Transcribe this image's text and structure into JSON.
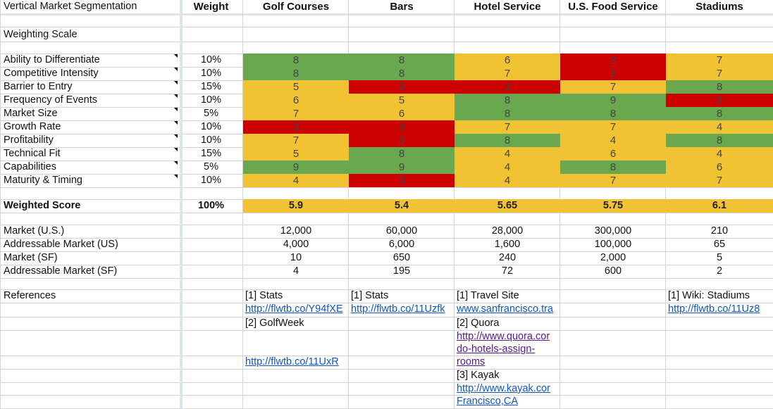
{
  "header": {
    "title": "Vertical Market Segmentation",
    "weight": "Weight",
    "segments": [
      "Golf Courses",
      "Bars",
      "Hotel Service",
      "U.S. Food Service",
      "Stadiums"
    ]
  },
  "weighting_scale_label": "Weighting Scale",
  "criteria": [
    {
      "label": "Ability to Differentiate",
      "weight": "10%",
      "scores": [
        "8",
        "8",
        "6",
        "2",
        "7"
      ],
      "colors": [
        "green",
        "green",
        "yellow",
        "red",
        "yellow"
      ]
    },
    {
      "label": "Competitive Intensity",
      "weight": "10%",
      "scores": [
        "8",
        "8",
        "7",
        "1",
        "7"
      ],
      "colors": [
        "green",
        "green",
        "yellow",
        "red",
        "yellow"
      ]
    },
    {
      "label": "Barrier to Entry",
      "weight": "15%",
      "scores": [
        "5",
        "3",
        "3",
        "7",
        "8"
      ],
      "colors": [
        "yellow",
        "red",
        "red",
        "yellow",
        "green"
      ]
    },
    {
      "label": "Frequency of Events",
      "weight": "10%",
      "scores": [
        "6",
        "5",
        "8",
        "9",
        "3"
      ],
      "colors": [
        "yellow",
        "yellow",
        "green",
        "green",
        "red"
      ]
    },
    {
      "label": "Market Size",
      "weight": "5%",
      "scores": [
        "7",
        "6",
        "8",
        "8",
        "8"
      ],
      "colors": [
        "yellow",
        "yellow",
        "green",
        "green",
        "green"
      ]
    },
    {
      "label": "Growth Rate",
      "weight": "10%",
      "scores": [
        "3",
        "3",
        "7",
        "7",
        "4"
      ],
      "colors": [
        "red",
        "red",
        "yellow",
        "yellow",
        "yellow"
      ]
    },
    {
      "label": "Profitability",
      "weight": "10%",
      "scores": [
        "7",
        "3",
        "8",
        "4",
        "8"
      ],
      "colors": [
        "yellow",
        "red",
        "green",
        "yellow",
        "green"
      ]
    },
    {
      "label": "Technical Fit",
      "weight": "15%",
      "scores": [
        "5",
        "8",
        "4",
        "6",
        "4"
      ],
      "colors": [
        "yellow",
        "green",
        "yellow",
        "yellow",
        "yellow"
      ]
    },
    {
      "label": "Capabilities",
      "weight": "5%",
      "scores": [
        "9",
        "9",
        "4",
        "8",
        "6"
      ],
      "colors": [
        "green",
        "green",
        "yellow",
        "green",
        "yellow"
      ]
    },
    {
      "label": "Maturity & Timing",
      "weight": "10%",
      "scores": [
        "4",
        "3",
        "4",
        "7",
        "7"
      ],
      "colors": [
        "yellow",
        "red",
        "yellow",
        "yellow",
        "yellow"
      ]
    }
  ],
  "weighted": {
    "label": "Weighted Score",
    "weight": "100%",
    "scores": [
      "5.9",
      "5.4",
      "5.65",
      "5.75",
      "6.1"
    ]
  },
  "markets": [
    {
      "label": "Market (U.S.)",
      "values": [
        "12,000",
        "60,000",
        "28,000",
        "300,000",
        "210"
      ]
    },
    {
      "label": "Addressable Market (US)",
      "values": [
        "4,000",
        "6,000",
        "1,600",
        "100,000",
        "65"
      ]
    },
    {
      "label": "Market (SF)",
      "values": [
        "10",
        "650",
        "240",
        "2,000",
        "5"
      ]
    },
    {
      "label": "Addressable Market (SF)",
      "values": [
        "4",
        "195",
        "72",
        "600",
        "2"
      ]
    }
  ],
  "references": {
    "label": "References",
    "golf": {
      "r1": "[1] Stats",
      "l1": "http://flwtb.co/Y94fXE",
      "r2": "[2] GolfWeek",
      "l2": "http://flwtb.co/11UxR"
    },
    "bars": {
      "r1": "[1] Stats",
      "l1": "http://flwtb.co/11Uzfk"
    },
    "hotel": {
      "r1": "[1] Travel Site",
      "l1": "www.sanfrancisco.tra",
      "r2": "[2] Quora",
      "l2a": "http://www.quora.cor",
      "l2b": "do-hotels-assign-",
      "l2c": "rooms",
      "r3": "[3] Kayak",
      "l3a": "http://www.kayak.cor",
      "l3b": "Francisco,CA"
    },
    "stadiums": {
      "r1": "[1] Wiki: Stadiums",
      "l1": "http://flwtb.co/11Uz8"
    }
  },
  "colors": {
    "green": "#6aa84f",
    "yellow": "#f1c232",
    "red": "#cc0000",
    "link": "#1155cc",
    "visited": "#551a8b"
  }
}
